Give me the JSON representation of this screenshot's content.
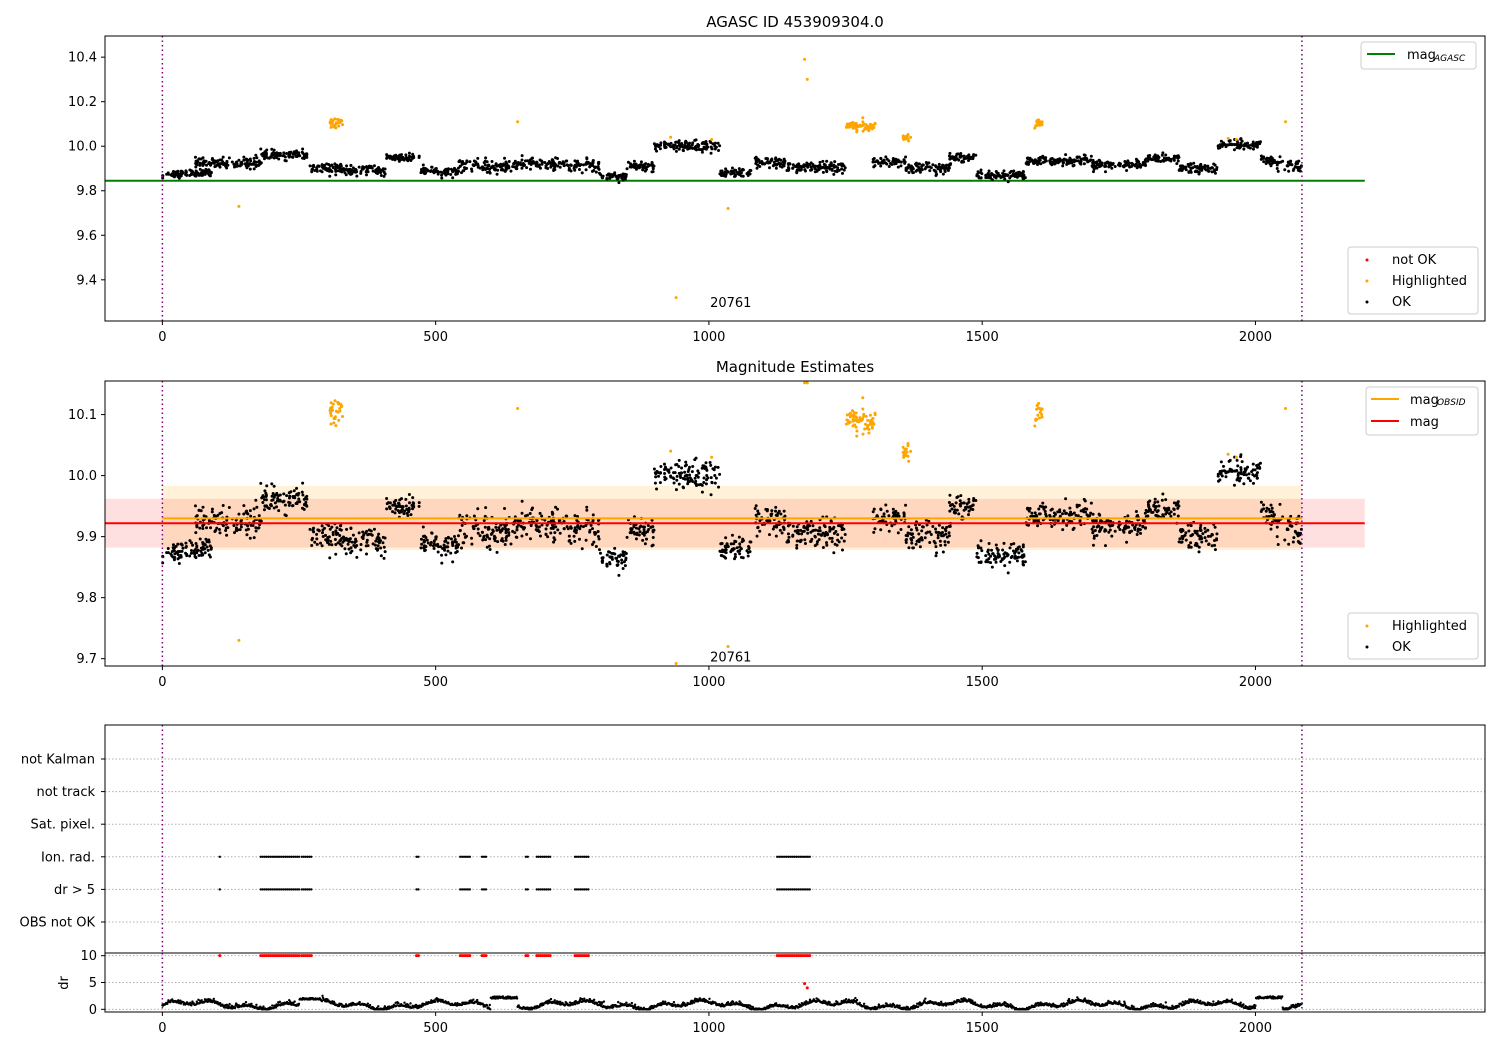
{
  "chart_data": [
    {
      "type": "scatter",
      "title": "AGASC ID 453909304.0",
      "xlabel": "",
      "ylabel": "",
      "xlim": [
        -105,
        2420
      ],
      "ylim": [
        9.215,
        10.495
      ],
      "xticks": [
        0,
        500,
        1000,
        1500,
        2000
      ],
      "yticks": [
        9.4,
        9.6,
        9.8,
        10.0,
        10.2,
        10.4
      ],
      "ytick_labels": [
        "9.4",
        "9.6",
        "9.8",
        "10.0",
        "10.2",
        "10.4"
      ],
      "obsid_label": {
        "text": "20761",
        "x": 1040,
        "y": 9.3
      },
      "obs_boundaries": [
        0,
        2085
      ],
      "reference_lines": [
        {
          "name": "mag_AGASC",
          "label_main": "mag",
          "label_sub": "AGASC",
          "value": 9.845,
          "x_range": [
            -105,
            2200
          ],
          "color": "#008000"
        }
      ],
      "legend_lines": {
        "position": "upper right"
      },
      "legend_points": {
        "position": "lower right",
        "entries": [
          {
            "label": "not OK",
            "color": "#ff0000"
          },
          {
            "label": "Highlighted",
            "color": "#ffa500"
          },
          {
            "label": "OK",
            "color": "#000000"
          }
        ]
      },
      "series": [
        {
          "name": "OK",
          "color": "#000000",
          "description": "dense time series of ~2080 points, values 9.84-10.03",
          "segments": [
            {
              "x": [
                0,
                90
              ],
              "y_center": 9.87,
              "y_end": 9.885,
              "noise": 0.008
            },
            {
              "x": [
                60,
                180
              ],
              "y_center": 9.925,
              "noise": 0.012
            },
            {
              "x": [
                180,
                270
              ],
              "y_center": 9.96,
              "noise": 0.01
            },
            {
              "x": [
                270,
                330
              ],
              "y_center": 9.9,
              "noise": 0.012
            },
            {
              "x": [
                330,
                410
              ],
              "y_center": 9.89,
              "noise": 0.01
            },
            {
              "x": [
                410,
                470
              ],
              "y_center": 9.95,
              "noise": 0.01
            },
            {
              "x": [
                470,
                540
              ],
              "y_center": 9.885,
              "noise": 0.01
            },
            {
              "x": [
                540,
                640
              ],
              "y_center": 9.91,
              "noise": 0.015
            },
            {
              "x": [
                640,
                740
              ],
              "y_center": 9.92,
              "noise": 0.012
            },
            {
              "x": [
                740,
                800
              ],
              "y_center": 9.91,
              "noise": 0.015
            },
            {
              "x": [
                800,
                850
              ],
              "y_center": 9.865,
              "noise": 0.01
            },
            {
              "x": [
                850,
                900
              ],
              "y_center": 9.91,
              "noise": 0.012
            },
            {
              "x": [
                900,
                1020
              ],
              "y_center": 10.0,
              "noise": 0.012
            },
            {
              "x": [
                1020,
                1080
              ],
              "y_center": 9.88,
              "noise": 0.01
            },
            {
              "x": [
                1080,
                1140
              ],
              "y_center": 9.925,
              "noise": 0.012
            },
            {
              "x": [
                1140,
                1250
              ],
              "y_center": 9.905,
              "noise": 0.012
            },
            {
              "x": [
                1300,
                1360
              ],
              "y_center": 9.93,
              "noise": 0.01
            },
            {
              "x": [
                1360,
                1440
              ],
              "y_center": 9.9,
              "noise": 0.012
            },
            {
              "x": [
                1440,
                1490
              ],
              "y_center": 9.95,
              "noise": 0.01
            },
            {
              "x": [
                1490,
                1580
              ],
              "y_center": 9.87,
              "noise": 0.01
            },
            {
              "x": [
                1580,
                1700
              ],
              "y_center": 9.935,
              "noise": 0.01
            },
            {
              "x": [
                1700,
                1800
              ],
              "y_center": 9.915,
              "noise": 0.012
            },
            {
              "x": [
                1800,
                1860
              ],
              "y_center": 9.945,
              "noise": 0.01
            },
            {
              "x": [
                1860,
                1930
              ],
              "y_center": 9.9,
              "noise": 0.012
            },
            {
              "x": [
                1930,
                2010
              ],
              "y_center": 10.005,
              "noise": 0.012
            },
            {
              "x": [
                2010,
                2085
              ],
              "y_center": 9.94,
              "y_end": 9.9,
              "noise": 0.012
            }
          ]
        },
        {
          "name": "Highlighted",
          "color": "#ffa500",
          "clusters": [
            {
              "x": [
                305,
                330
              ],
              "y_center": 10.1,
              "noise": 0.012
            },
            {
              "x": [
                1250,
                1305
              ],
              "y_center": 10.09,
              "noise": 0.012
            },
            {
              "x": [
                1595,
                1610
              ],
              "y_center": 10.1,
              "noise": 0.01
            },
            {
              "x": [
                1355,
                1370
              ],
              "y_center": 10.04,
              "noise": 0.005
            }
          ],
          "points": [
            [
              140,
              9.73
            ],
            [
              650,
              10.11
            ],
            [
              930,
              10.04
            ],
            [
              940,
              9.32
            ],
            [
              1035,
              9.72
            ],
            [
              1175,
              10.39
            ],
            [
              1180,
              10.3
            ],
            [
              1005,
              10.03
            ],
            [
              1950,
              10.035
            ],
            [
              1965,
              10.03
            ],
            [
              2055,
              10.11
            ]
          ]
        },
        {
          "name": "not OK",
          "color": "#ff0000",
          "points": []
        }
      ]
    },
    {
      "type": "scatter",
      "title": "Magnitude Estimates",
      "xlabel": "",
      "ylabel": "",
      "xlim": [
        -105,
        2420
      ],
      "ylim": [
        9.688,
        10.155
      ],
      "xticks": [
        0,
        500,
        1000,
        1500,
        2000
      ],
      "yticks": [
        9.7,
        9.8,
        9.9,
        10.0,
        10.1
      ],
      "ytick_labels": [
        "9.7",
        "9.8",
        "9.9",
        "10.0",
        "10.1"
      ],
      "obsid_label": {
        "text": "20761",
        "x": 1040,
        "y": 9.697
      },
      "obs_boundaries": [
        0,
        2085
      ],
      "reference_lines": [
        {
          "name": "mag_OBSID",
          "label_main": "mag",
          "label_sub": "OBSID",
          "value": 9.93,
          "x_range": [
            0,
            2085
          ],
          "color": "#ffa500"
        },
        {
          "name": "mag",
          "label_main": "mag",
          "label_sub": "",
          "value": 9.922,
          "x_range": [
            -105,
            2200
          ],
          "color": "#ff0000"
        }
      ],
      "bands": [
        {
          "name": "mag band",
          "y_range": [
            9.882,
            9.962
          ],
          "x_range": [
            -105,
            2200
          ],
          "color": "#ff0000",
          "opacity": 0.12
        },
        {
          "name": "mag_OBSID band",
          "y_range": [
            9.878,
            9.983
          ],
          "x_range": [
            0,
            2085
          ],
          "color": "#ffa500",
          "opacity": 0.15
        }
      ],
      "legend_lines": {
        "position": "upper right"
      },
      "legend_points": {
        "position": "lower right",
        "entries": [
          {
            "label": "Highlighted",
            "color": "#ffa500"
          },
          {
            "label": "OK",
            "color": "#000000"
          }
        ]
      }
    },
    {
      "type": "scatter",
      "title": "",
      "xlabel": "",
      "ylabel": "",
      "xlim": [
        -105,
        2420
      ],
      "categories": [
        "not Kalman",
        "not track",
        "Sat. pixel.",
        "Ion. rad.",
        "dr > 5",
        "OBS not OK"
      ],
      "flag_runs": [
        [
          105,
          105
        ],
        [
          180,
          250
        ],
        [
          255,
          275
        ],
        [
          465,
          470
        ],
        [
          545,
          565
        ],
        [
          585,
          595
        ],
        [
          665,
          670
        ],
        [
          685,
          710
        ],
        [
          755,
          780
        ],
        [
          1125,
          1185
        ]
      ],
      "flag_rows": [
        "Ion. rad.",
        "dr > 5"
      ],
      "obs_boundaries": [
        0,
        2085
      ]
    },
    {
      "type": "line",
      "title": "",
      "xlabel": "",
      "ylabel": "dr",
      "xlim": [
        -105,
        2420
      ],
      "ylim": [
        -0.5,
        10.5
      ],
      "xticks": [
        0,
        500,
        1000,
        1500,
        2000
      ],
      "yticks": [
        0,
        5,
        10
      ],
      "ytick_labels": [
        "0",
        "5",
        "10"
      ],
      "clip_value": 10,
      "red_points": [
        [
          1175,
          4.8
        ],
        [
          1180,
          4.0
        ]
      ],
      "obs_boundaries": [
        0,
        2085
      ]
    }
  ]
}
